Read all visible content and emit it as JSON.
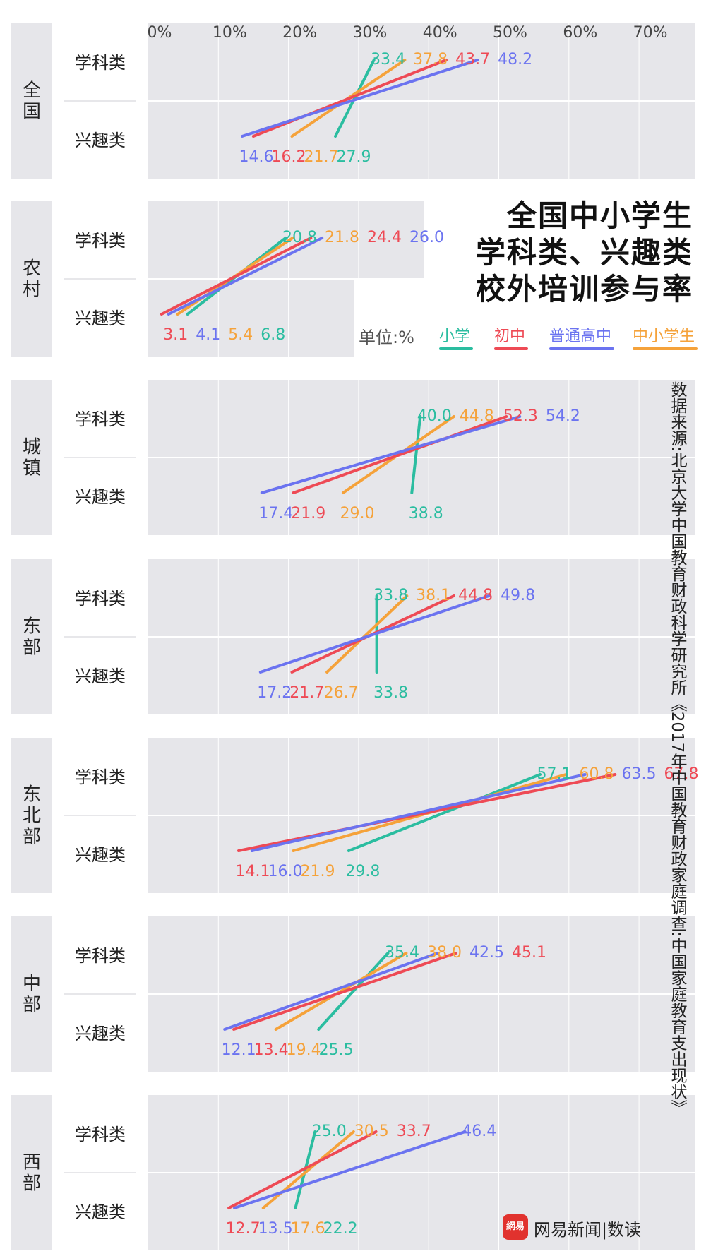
{
  "title": [
    "全国中小学生",
    "学科类、兴趣类",
    "校外培训参与率"
  ],
  "unit": "单位:%",
  "source": "数据来源:北京大学中国教育财政科学研究所《2017年中国教育财政家庭调查:中国家庭教育支出现状》",
  "logo": {
    "mark": "網易",
    "text": "网易新闻|数读"
  },
  "legend": [
    {
      "name": "小学",
      "color": "#2bbda0"
    },
    {
      "name": "初中",
      "color": "#ee4a55"
    },
    {
      "name": "普通高中",
      "color": "#6b73f0"
    },
    {
      "name": "中小学生",
      "color": "#f5a23a"
    }
  ],
  "chart_data": {
    "type": "slope",
    "x_ticks": [
      "0%",
      "10%",
      "20%",
      "30%",
      "40%",
      "50%",
      "60%",
      "70%"
    ],
    "xlim": [
      0,
      78
    ],
    "row_labels": [
      "学科类",
      "兴趣类"
    ],
    "series_names": [
      "小学",
      "初中",
      "普通高中",
      "中小学生"
    ],
    "regions": [
      {
        "name": "全国",
        "academic": [
          33.4,
          43.7,
          48.2,
          37.8
        ],
        "interest": [
          27.9,
          16.2,
          14.6,
          21.7
        ]
      },
      {
        "name": "农村",
        "academic": [
          20.8,
          24.4,
          26.0,
          21.8
        ],
        "interest": [
          6.8,
          3.1,
          4.1,
          5.4
        ]
      },
      {
        "name": "城镇",
        "academic": [
          40.0,
          52.3,
          54.2,
          44.8
        ],
        "interest": [
          38.8,
          21.9,
          17.4,
          29.0
        ]
      },
      {
        "name": "东部",
        "academic": [
          33.8,
          44.8,
          49.8,
          38.1
        ],
        "interest": [
          33.8,
          21.7,
          17.2,
          26.7
        ]
      },
      {
        "name": "东北部",
        "academic": [
          57.1,
          67.8,
          63.5,
          60.8
        ],
        "interest": [
          29.8,
          14.1,
          16.0,
          21.9
        ]
      },
      {
        "name": "中部",
        "academic": [
          35.4,
          45.1,
          42.5,
          38.0
        ],
        "interest": [
          25.5,
          13.4,
          12.1,
          19.4
        ]
      },
      {
        "name": "西部",
        "academic": [
          25.0,
          33.7,
          46.4,
          30.5
        ],
        "interest": [
          22.2,
          12.7,
          13.5,
          17.6
        ]
      }
    ]
  }
}
